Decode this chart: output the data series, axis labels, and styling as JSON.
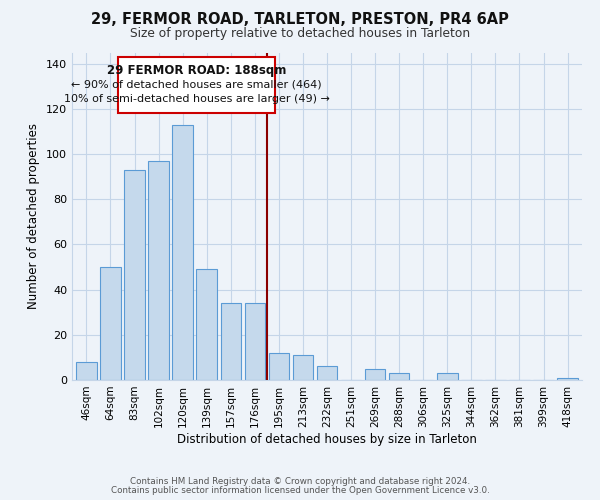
{
  "title_line1": "29, FERMOR ROAD, TARLETON, PRESTON, PR4 6AP",
  "title_line2": "Size of property relative to detached houses in Tarleton",
  "xlabel": "Distribution of detached houses by size in Tarleton",
  "ylabel": "Number of detached properties",
  "bar_labels": [
    "46sqm",
    "64sqm",
    "83sqm",
    "102sqm",
    "120sqm",
    "139sqm",
    "157sqm",
    "176sqm",
    "195sqm",
    "213sqm",
    "232sqm",
    "251sqm",
    "269sqm",
    "288sqm",
    "306sqm",
    "325sqm",
    "344sqm",
    "362sqm",
    "381sqm",
    "399sqm",
    "418sqm"
  ],
  "bar_values": [
    8,
    50,
    93,
    97,
    113,
    49,
    34,
    34,
    12,
    11,
    6,
    0,
    5,
    3,
    0,
    3,
    0,
    0,
    0,
    0,
    1
  ],
  "bar_color": "#c5d9ec",
  "bar_edge_color": "#5b9bd5",
  "ylim": [
    0,
    145
  ],
  "yticks": [
    0,
    20,
    40,
    60,
    80,
    100,
    120,
    140
  ],
  "vline_x_idx": 8,
  "vline_color": "#8b0000",
  "annotation_title": "29 FERMOR ROAD: 188sqm",
  "annotation_line1": "← 90% of detached houses are smaller (464)",
  "annotation_line2": "10% of semi-detached houses are larger (49) →",
  "annotation_box_color": "#ffffff",
  "annotation_box_edge": "#cc0000",
  "footnote1": "Contains HM Land Registry data © Crown copyright and database right 2024.",
  "footnote2": "Contains public sector information licensed under the Open Government Licence v3.0.",
  "bg_color": "#eef3f9",
  "grid_color": "#c5d5e8"
}
